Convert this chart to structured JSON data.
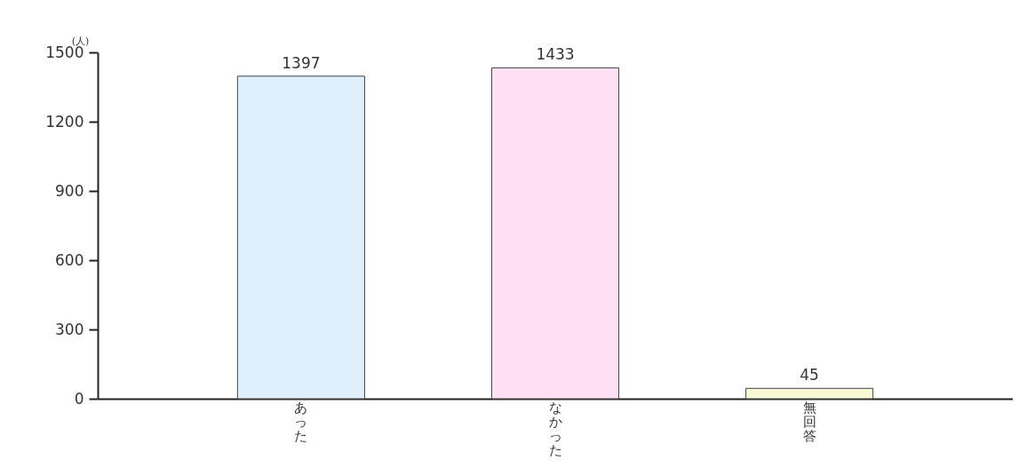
{
  "chart_data": {
    "type": "bar",
    "ylabel": "(人)",
    "categories": [
      "あった",
      "なかった",
      "無回答"
    ],
    "values": [
      1397,
      1433,
      45
    ],
    "colors": [
      "#dff0fc",
      "#fde0f4",
      "#f8f8d4"
    ],
    "ylim": [
      0,
      1500
    ],
    "yticks": [
      0,
      300,
      600,
      900,
      1200,
      1500
    ],
    "data_labels": true,
    "grid": false
  }
}
